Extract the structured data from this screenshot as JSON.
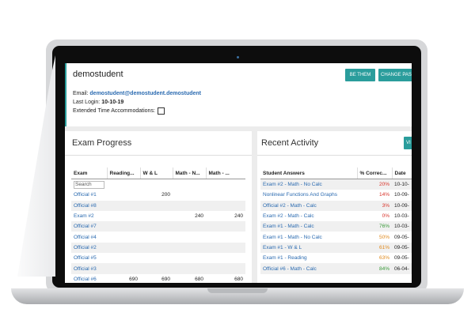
{
  "header": {
    "name": "demostudent",
    "buttons": [
      "BE THEM",
      "CHANGE PAS"
    ]
  },
  "info": {
    "email_label": "Email:",
    "email": "demostudent@demostudent.demostudent",
    "last_login_label": "Last Login:",
    "last_login": "10-10-19",
    "extended_label": "Extended Time Accommodations:"
  },
  "exam_progress": {
    "title": "Exam Progress",
    "columns": [
      "Exam",
      "Reading...",
      "W & L",
      "Math - N...",
      "Math - ..."
    ],
    "search": "Search",
    "rows": [
      [
        "Official #1",
        null,
        "200",
        null,
        null
      ],
      [
        "Official #8",
        null,
        null,
        null,
        null
      ],
      [
        "Exam #2",
        null,
        null,
        "240",
        "240"
      ],
      [
        "Official #7",
        null,
        null,
        null,
        null
      ],
      [
        "Official #4",
        null,
        null,
        null,
        null
      ],
      [
        "Official #2",
        null,
        null,
        null,
        null
      ],
      [
        "Official #5",
        null,
        null,
        null,
        null
      ],
      [
        "Official #3",
        null,
        null,
        null,
        null
      ],
      [
        "Official #6",
        "690",
        "690",
        "680",
        "680"
      ]
    ]
  },
  "recent_activity": {
    "title": "Recent Activity",
    "button": "VI",
    "columns": [
      "Student Answers",
      "% Correc...",
      "Date"
    ],
    "rows": [
      {
        "name": "Exam #2 - Math - No Calc",
        "score": "20%",
        "date": "10-10-",
        "color": "#d9342b"
      },
      {
        "name": "Nonlinear Functions And Graphs",
        "score": "14%",
        "date": "10-09-",
        "color": "#d9342b"
      },
      {
        "name": "Official #2 - Math - Calc",
        "score": "3%",
        "date": "10-09-",
        "color": "#d9342b"
      },
      {
        "name": "Exam #2 - Math - Calc",
        "score": "0%",
        "date": "10-03-",
        "color": "#d9342b"
      },
      {
        "name": "Exam #1 - Math - Calc",
        "score": "76%",
        "date": "10-03-",
        "color": "#3a9a3a"
      },
      {
        "name": "Exam #1 - Math - No Calc",
        "score": "50%",
        "date": "09-05-",
        "color": "#e08a1e"
      },
      {
        "name": "Exam #1 - W & L",
        "score": "61%",
        "date": "09-05-",
        "color": "#e08a1e"
      },
      {
        "name": "Exam #1 - Reading",
        "score": "63%",
        "date": "09-05-",
        "color": "#e08a1e"
      },
      {
        "name": "Official #6 - Math - Calc",
        "score": "84%",
        "date": "06-04-",
        "color": "#3a9a3a"
      }
    ]
  }
}
